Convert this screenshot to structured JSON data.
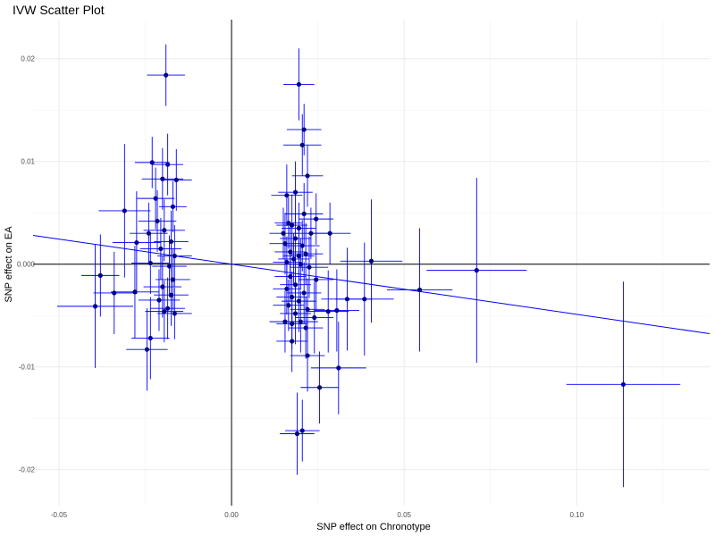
{
  "chart_data": {
    "type": "scatter",
    "title": "IVW Scatter Plot",
    "xlabel": "SNP effect on Chronotype",
    "ylabel": "SNP effect on EA",
    "xlim": [
      -0.0575,
      0.1385
    ],
    "ylim": [
      -0.0235,
      0.0238
    ],
    "x_ticks": [
      -0.05,
      0.0,
      0.05,
      0.1
    ],
    "x_tick_labels": [
      "-0.05",
      "0.00",
      "0.05",
      "0.10"
    ],
    "y_ticks": [
      -0.02,
      -0.01,
      0.0,
      0.01,
      0.02
    ],
    "y_tick_labels": [
      "-0.02",
      "-0.01",
      "0.000",
      "0.01",
      "0.02"
    ],
    "grid": true,
    "reference_lines": {
      "x": 0,
      "y": 0
    },
    "ivw_line": {
      "intercept": 0,
      "slope": -0.0488
    },
    "colors": {
      "points": "#00008b",
      "error_bars": "#0000ff",
      "ivw_line": "#0000ff",
      "reference_lines": "#000000"
    },
    "points": [
      [
        -0.019,
        0.0184,
        0.0055,
        0.003
      ],
      [
        0.0195,
        0.0175,
        0.0045,
        0.0035
      ],
      [
        0.021,
        0.0131,
        0.005,
        0.0025
      ],
      [
        0.0205,
        0.0116,
        0.0055,
        0.003
      ],
      [
        -0.023,
        0.0099,
        0.005,
        0.0025
      ],
      [
        -0.0185,
        0.0097,
        0.0045,
        0.003
      ],
      [
        0.022,
        0.0086,
        0.0045,
        0.003
      ],
      [
        -0.02,
        0.0083,
        0.006,
        0.003
      ],
      [
        -0.016,
        0.0082,
        0.0045,
        0.003
      ],
      [
        0.016,
        0.0067,
        0.0045,
        0.003
      ],
      [
        0.0185,
        0.007,
        0.005,
        0.003
      ],
      [
        -0.022,
        0.0064,
        0.0055,
        0.003
      ],
      [
        -0.017,
        0.0056,
        0.004,
        0.0025
      ],
      [
        -0.031,
        0.0052,
        0.0075,
        0.0065
      ],
      [
        0.021,
        0.0049,
        0.0055,
        0.003
      ],
      [
        0.0245,
        0.0044,
        0.005,
        0.0025
      ],
      [
        -0.0215,
        0.0042,
        0.0055,
        0.003
      ],
      [
        0.0165,
        0.004,
        0.004,
        0.0025
      ],
      [
        0.0175,
        0.0038,
        0.0045,
        0.003
      ],
      [
        0.0195,
        0.0035,
        0.005,
        0.0025
      ],
      [
        -0.0195,
        0.0033,
        0.006,
        0.003
      ],
      [
        0.015,
        0.003,
        0.004,
        0.0025
      ],
      [
        -0.024,
        0.003,
        0.0055,
        0.003
      ],
      [
        0.023,
        0.003,
        0.005,
        0.0025
      ],
      [
        0.0285,
        0.003,
        0.006,
        0.003
      ],
      [
        0.0185,
        0.0025,
        0.0045,
        0.0025
      ],
      [
        -0.0175,
        0.0022,
        0.005,
        0.003
      ],
      [
        -0.0275,
        0.0021,
        0.007,
        0.005
      ],
      [
        0.0155,
        0.002,
        0.0045,
        0.003
      ],
      [
        0.0205,
        0.0018,
        0.005,
        0.0025
      ],
      [
        -0.0205,
        0.0015,
        0.006,
        0.003
      ],
      [
        0.017,
        0.0012,
        0.0045,
        0.0025
      ],
      [
        0.0215,
        0.001,
        0.005,
        0.003
      ],
      [
        0.0195,
        0.0008,
        0.0045,
        0.0025
      ],
      [
        -0.0165,
        0.0008,
        0.005,
        0.003
      ],
      [
        0.018,
        0.0005,
        0.0045,
        0.0025
      ],
      [
        0.0405,
        0.0003,
        0.009,
        0.006
      ],
      [
        0.016,
        0.0002,
        0.004,
        0.0025
      ],
      [
        -0.0235,
        0.0001,
        0.0055,
        0.003
      ],
      [
        0.02,
        0.0,
        0.005,
        0.0025
      ],
      [
        -0.018,
        -0.0002,
        0.005,
        0.003
      ],
      [
        0.0225,
        -0.0003,
        0.0055,
        0.003
      ],
      [
        0.071,
        -0.0006,
        0.0145,
        0.009
      ],
      [
        -0.038,
        -0.0011,
        0.0055,
        0.004
      ],
      [
        0.017,
        -0.0012,
        0.0045,
        0.0025
      ],
      [
        -0.017,
        -0.0015,
        0.005,
        0.003
      ],
      [
        0.0245,
        -0.0015,
        0.005,
        0.003
      ],
      [
        0.0185,
        -0.002,
        0.0045,
        0.0025
      ],
      [
        -0.02,
        -0.0022,
        0.0055,
        0.003
      ],
      [
        0.016,
        -0.0024,
        0.004,
        0.0025
      ],
      [
        0.0545,
        -0.0025,
        0.0095,
        0.006
      ],
      [
        -0.028,
        -0.0027,
        0.007,
        0.0045
      ],
      [
        -0.034,
        -0.0028,
        0.006,
        0.004
      ],
      [
        0.021,
        -0.0028,
        0.005,
        0.003
      ],
      [
        -0.0175,
        -0.003,
        0.005,
        0.003
      ],
      [
        0.0175,
        -0.0032,
        0.0045,
        0.0025
      ],
      [
        0.0335,
        -0.0034,
        0.0075,
        0.005
      ],
      [
        0.0385,
        -0.0034,
        0.0085,
        0.0055
      ],
      [
        -0.021,
        -0.0035,
        0.006,
        0.003
      ],
      [
        0.0195,
        -0.0036,
        0.005,
        0.003
      ],
      [
        0.0165,
        -0.004,
        0.0045,
        0.0025
      ],
      [
        -0.0395,
        -0.0041,
        0.011,
        0.006
      ],
      [
        -0.0185,
        -0.0043,
        0.005,
        0.003
      ],
      [
        0.022,
        -0.0044,
        0.005,
        0.003
      ],
      [
        0.0305,
        -0.0045,
        0.0065,
        0.004
      ],
      [
        -0.0195,
        -0.0046,
        0.0055,
        0.003
      ],
      [
        0.028,
        -0.0046,
        0.006,
        0.004
      ],
      [
        0.0185,
        -0.0048,
        0.0045,
        0.003
      ],
      [
        -0.0165,
        -0.0048,
        0.005,
        0.0025
      ],
      [
        0.024,
        -0.0052,
        0.0055,
        0.0035
      ],
      [
        0.0155,
        -0.0056,
        0.0045,
        0.003
      ],
      [
        0.02,
        -0.0056,
        0.005,
        0.003
      ],
      [
        0.0175,
        -0.0058,
        0.0045,
        0.0025
      ],
      [
        0.0215,
        -0.0062,
        0.005,
        0.003
      ],
      [
        -0.0235,
        -0.0072,
        0.0055,
        0.004
      ],
      [
        0.0175,
        -0.0075,
        0.0045,
        0.003
      ],
      [
        -0.0245,
        -0.0083,
        0.006,
        0.004
      ],
      [
        0.022,
        -0.0089,
        0.005,
        0.0035
      ],
      [
        0.031,
        -0.0101,
        0.008,
        0.0045
      ],
      [
        0.1135,
        -0.0117,
        0.0165,
        0.01
      ],
      [
        0.0255,
        -0.012,
        0.0055,
        0.0035
      ],
      [
        0.0205,
        -0.0162,
        0.005,
        0.003
      ],
      [
        0.019,
        -0.0165,
        0.005,
        0.004
      ]
    ]
  }
}
